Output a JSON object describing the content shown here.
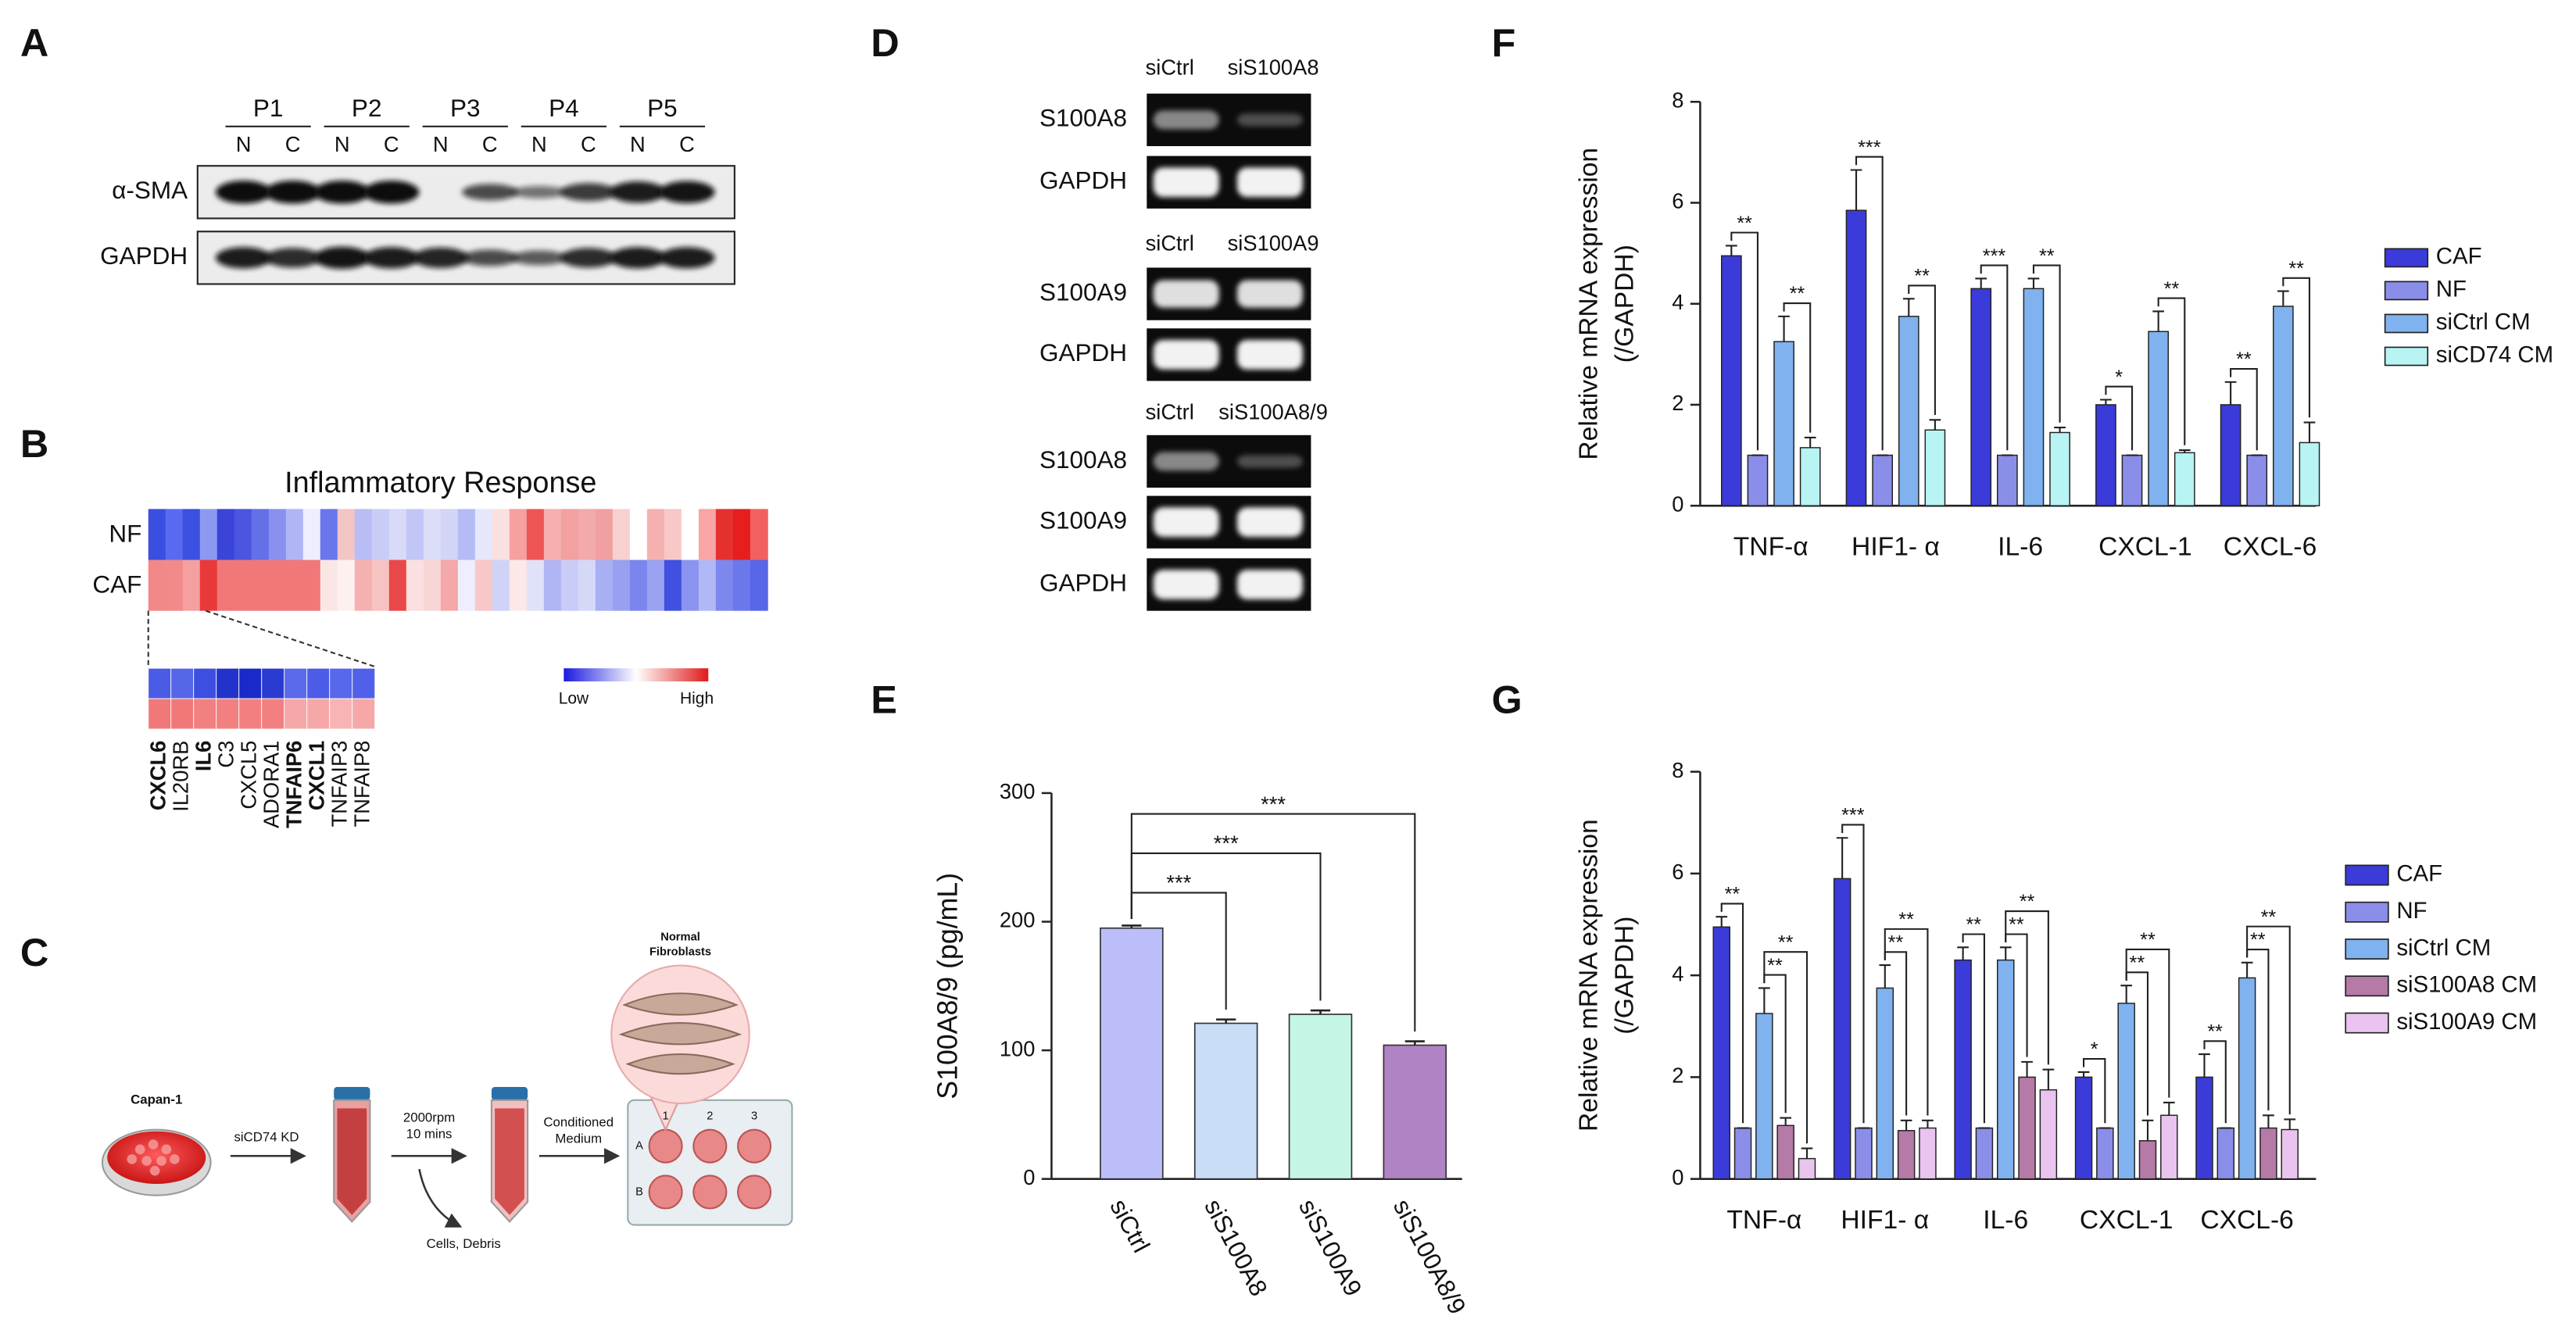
{
  "panel_labels": [
    "A",
    "B",
    "C",
    "D",
    "E",
    "F",
    "G"
  ],
  "panel_a": {
    "lanes": [
      "P1",
      "P2",
      "P3",
      "P4",
      "P5"
    ],
    "lane_sublabels": [
      "N",
      "C"
    ],
    "rows": [
      "α-SMA",
      "GAPDH"
    ]
  },
  "panel_b": {
    "title": "Inflammatory Response",
    "rows": [
      "NF",
      "CAF"
    ],
    "heatmap_colors": [
      [
        "#3a4fe0",
        "#5a6af0",
        "#3b50e0",
        "#8d99f0",
        "#3a44d8",
        "#4a55e0",
        "#6370e8",
        "#8a90ee",
        "#b0b5f5",
        "#eeeeff",
        "#6a76ec",
        "#f3c5c5",
        "#b9bdf5",
        "#c9cdf6",
        "#d8daf8",
        "#c2c6f6",
        "#dcdef9",
        "#d2d4f8",
        "#b5bbf5",
        "#e6e7fb",
        "#fbe0e0",
        "#f6a0a0",
        "#ee5555",
        "#f7b0b0",
        "#f3a0a0",
        "#f2aaaa",
        "#f0a0a0",
        "#f8d0d0",
        "#ffffff",
        "#f5b0b0",
        "#f8c8c8",
        "#ffffff",
        "#f7a5a5",
        "#e53030",
        "#e61e1e",
        "#f26060"
      ],
      [
        "#f28888",
        "#f28a8a",
        "#f4a0a0",
        "#e83a3a",
        "#f07878",
        "#f07878",
        "#f07878",
        "#f07878",
        "#f07878",
        "#f07878",
        "#fbe6e6",
        "#fdf0f0",
        "#f5b0b0",
        "#f7c2c2",
        "#e84848",
        "#fae0e0",
        "#f9d6d6",
        "#f4a8a8",
        "#eeeeff",
        "#f8c8c8",
        "#d0d3f8",
        "#fce8e8",
        "#e0e2fa",
        "#b0b6f4",
        "#c8ccf6",
        "#d6d8f8",
        "#a8aff3",
        "#9aa0f1",
        "#7a86ee",
        "#9aa2f2",
        "#4050e0",
        "#8a94f0",
        "#b0b8f5",
        "#7c88ee",
        "#6a78ec",
        "#5866e8"
      ]
    ],
    "zoom_colors": [
      [
        "#4a5ce6",
        "#5566e8",
        "#3d4fe0",
        "#2233cc",
        "#1a2ac8",
        "#2a3bd2",
        "#5a6aea",
        "#4c5ce6",
        "#5868ea",
        "#5060e8"
      ],
      [
        "#f07878",
        "#f07878",
        "#f28080",
        "#f28080",
        "#f28080",
        "#f28080",
        "#f6a8a8",
        "#f6a8a8",
        "#f8b4b4",
        "#f6a8a8"
      ]
    ],
    "genes": [
      {
        "name": "CXCL6",
        "color": "#e01010"
      },
      {
        "name": "IL20RB",
        "color": "#222222"
      },
      {
        "name": "IL6",
        "color": "#e01010"
      },
      {
        "name": "C3",
        "color": "#222222"
      },
      {
        "name": "CXCL5",
        "color": "#222222"
      },
      {
        "name": "ADORA1",
        "color": "#222222"
      },
      {
        "name": "TNFAIP6",
        "color": "#e01010"
      },
      {
        "name": "CXCL1",
        "color": "#e01010"
      },
      {
        "name": "TNFAIP3",
        "color": "#222222"
      },
      {
        "name": "TNFAIP8",
        "color": "#222222"
      }
    ],
    "legend": [
      "Low",
      "High"
    ],
    "legend_colors": [
      "#1a1ae0",
      "#ffffff",
      "#e01a1a"
    ]
  },
  "panel_c": {
    "cells": "Capan-1",
    "step1": "siCD74 KD",
    "step2": [
      "2000rpm",
      "10 mins"
    ],
    "step3": [
      "Conditioned",
      "Medium"
    ],
    "waste": "Cells, Debris",
    "target": [
      "Normal",
      "Fibroblasts"
    ],
    "well_columns": [
      "1",
      "2",
      "3"
    ],
    "well_rows": [
      "A",
      "B"
    ]
  },
  "panel_d": {
    "groups": [
      {
        "lanes": [
          "siCtrl",
          "siS100A8"
        ],
        "rows": [
          "S100A8",
          "GAPDH"
        ]
      },
      {
        "lanes": [
          "siCtrl",
          "siS100A9"
        ],
        "rows": [
          "S100A9",
          "GAPDH"
        ]
      },
      {
        "lanes": [
          "siCtrl",
          "siS100A8/9"
        ],
        "rows": [
          "S100A8",
          "S100A9",
          "GAPDH"
        ]
      }
    ]
  },
  "chart_data": [
    {
      "type": "bar",
      "ylabel": "S100A8/9 (pg/mL)",
      "categories": [
        "siCtrl",
        "siS100A8",
        "siS100A9",
        "siS100A8/9"
      ],
      "values": [
        195,
        121,
        128,
        104
      ],
      "errors": [
        2,
        3,
        3,
        3
      ],
      "colors": [
        "#bbbef8",
        "#c9ddf7",
        "#c5f5e5",
        "#b084c4"
      ],
      "ylim": [
        0,
        300
      ],
      "yticks": [
        0,
        100,
        200,
        300
      ],
      "significance": [
        {
          "pair": [
            "siCtrl",
            "siS100A8"
          ],
          "label": "***"
        },
        {
          "pair": [
            "siCtrl",
            "siS100A9"
          ],
          "label": "***"
        },
        {
          "pair": [
            "siCtrl",
            "siS100A8/9"
          ],
          "label": "***"
        }
      ]
    },
    {
      "type": "grouped_bar",
      "ylabel": [
        "Relative mRNA expression",
        "(/GAPDH)"
      ],
      "categories": [
        "TNF-α",
        "HIF1- α",
        "IL-6",
        "CXCL-1",
        "CXCL-6"
      ],
      "series": [
        {
          "name": "CAF",
          "color": "#3b3bd9",
          "values": [
            4.95,
            5.85,
            4.3,
            2.0,
            2.0
          ],
          "errors": [
            0.2,
            0.8,
            0.2,
            0.1,
            0.45
          ]
        },
        {
          "name": "NF",
          "color": "#8a8ee8",
          "values": [
            1,
            1,
            1,
            1,
            1
          ],
          "errors": [
            0,
            0,
            0,
            0,
            0
          ]
        },
        {
          "name": "siCtrl CM",
          "color": "#7fb2ee",
          "values": [
            3.25,
            3.75,
            4.3,
            3.45,
            3.95
          ],
          "errors": [
            0.5,
            0.35,
            0.2,
            0.4,
            0.3
          ]
        },
        {
          "name": "siCD74 CM",
          "color": "#b8f4f4",
          "values": [
            1.15,
            1.5,
            1.45,
            1.05,
            1.25
          ],
          "errors": [
            0.2,
            0.2,
            0.1,
            0.05,
            0.4
          ]
        }
      ],
      "ylim": [
        0,
        8
      ],
      "yticks": [
        0,
        2,
        4,
        6,
        8
      ],
      "significance": [
        {
          "pair": [
            "CAF",
            "NF"
          ],
          "labels": [
            "**",
            "***",
            "***",
            "*",
            "**"
          ]
        },
        {
          "pair": [
            "siCtrl CM",
            "siCD74 CM"
          ],
          "labels": [
            "**",
            "**",
            "**",
            "**",
            "**"
          ]
        }
      ]
    },
    {
      "type": "grouped_bar",
      "ylabel": [
        "Relative mRNA expression",
        "(/GAPDH)"
      ],
      "categories": [
        "TNF-α",
        "HIF1- α",
        "IL-6",
        "CXCL-1",
        "CXCL-6"
      ],
      "series": [
        {
          "name": "CAF",
          "color": "#3b3bd9",
          "values": [
            4.95,
            5.9,
            4.3,
            2.0,
            2.0
          ],
          "errors": [
            0.2,
            0.8,
            0.25,
            0.1,
            0.45
          ]
        },
        {
          "name": "NF",
          "color": "#8a8ee8",
          "values": [
            1,
            1,
            1,
            1,
            1
          ],
          "errors": [
            0,
            0,
            0,
            0,
            0
          ]
        },
        {
          "name": "siCtrl CM",
          "color": "#7fb2ee",
          "values": [
            3.25,
            3.75,
            4.3,
            3.45,
            3.95
          ],
          "errors": [
            0.5,
            0.45,
            0.25,
            0.35,
            0.3
          ]
        },
        {
          "name": "siS100A8 CM",
          "color": "#b67aa7",
          "values": [
            1.05,
            0.95,
            2.0,
            0.75,
            1.0
          ],
          "errors": [
            0.15,
            0.2,
            0.3,
            0.4,
            0.25
          ]
        },
        {
          "name": "siS100A9 CM",
          "color": "#e8c4ee",
          "values": [
            0.4,
            1.0,
            1.75,
            1.25,
            0.97
          ],
          "errors": [
            0.2,
            0.15,
            0.4,
            0.25,
            0.2
          ]
        }
      ],
      "ylim": [
        0,
        8
      ],
      "yticks": [
        0,
        2,
        4,
        6,
        8
      ],
      "significance": [
        {
          "pair": [
            "CAF",
            "NF"
          ],
          "labels": [
            "**",
            "***",
            "**",
            "*",
            "**"
          ]
        },
        {
          "pair": [
            "siCtrl CM",
            "siS100A8 CM"
          ],
          "labels": [
            "**",
            "**",
            "**",
            "**",
            "**"
          ]
        },
        {
          "pair": [
            "siCtrl CM",
            "siS100A9 CM"
          ],
          "labels": [
            "**",
            "**",
            "**",
            "**",
            "**"
          ]
        }
      ]
    }
  ]
}
